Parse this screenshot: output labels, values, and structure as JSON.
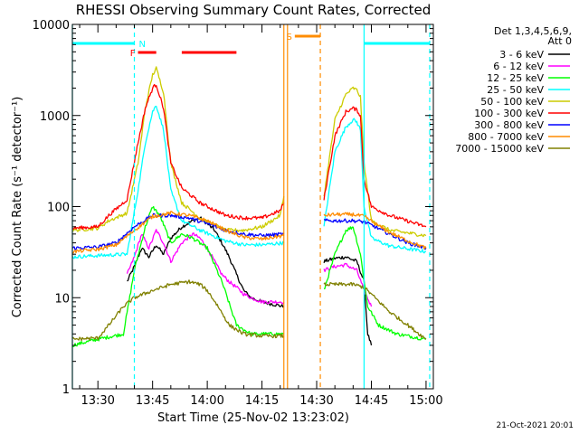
{
  "chart_data": {
    "type": "line",
    "title": "RHESSI Observing Summary Count Rates, Corrected",
    "xlabel": "Start Time (25-Nov-02 13:23:02)",
    "ylabel": "Corrected Count Rate (s⁻¹ detector⁻¹)",
    "y_scale": "log",
    "ylim": [
      1,
      10000
    ],
    "xlim": [
      "13:23",
      "15:02"
    ],
    "x_ticks": [
      "13:30",
      "13:45",
      "14:00",
      "14:15",
      "14:30",
      "14:45",
      "15:00"
    ],
    "y_ticks": [
      "1",
      "10",
      "100",
      "1000",
      "10000"
    ],
    "legend_header": [
      "Det 1,3,4,5,6,9,",
      "Att 0"
    ],
    "legend_position": "top-right",
    "footer_date": "21-Oct-2021 20:01",
    "annotations": [
      {
        "label": "N",
        "type": "night",
        "color": "#00ffff",
        "spans": [
          [
            "13:23",
            "13:40"
          ],
          [
            "14:43",
            "15:01"
          ]
        ]
      },
      {
        "label": "F",
        "type": "flare",
        "color": "#ff0000",
        "spans": [
          [
            "13:41",
            "13:46"
          ],
          [
            "13:53",
            "14:08"
          ]
        ]
      },
      {
        "label": "S",
        "type": "saa",
        "color": "#ff8c00",
        "spans": [
          [
            "14:24",
            "14:31"
          ]
        ]
      }
    ],
    "vlines": [
      {
        "x": "13:23",
        "color": "#00ffff",
        "style": "solid"
      },
      {
        "x": "13:40",
        "color": "#00ffff",
        "style": "dashed"
      },
      {
        "x": "14:21",
        "color": "#ff8c00",
        "style": "solid"
      },
      {
        "x": "14:22",
        "color": "#ff8c00",
        "style": "solid"
      },
      {
        "x": "14:31",
        "color": "#ff8c00",
        "style": "dashed"
      },
      {
        "x": "14:43",
        "color": "#00ffff",
        "style": "solid"
      },
      {
        "x": "15:01",
        "color": "#00ffff",
        "style": "dashed"
      }
    ],
    "series": [
      {
        "name": "3 - 6 keV",
        "color": "#000000",
        "segments": [
          [
            [
              "13:38",
              15
            ],
            [
              "13:40",
              22
            ],
            [
              "13:42",
              35
            ],
            [
              "13:44",
              28
            ],
            [
              "13:46",
              38
            ],
            [
              "13:48",
              30
            ],
            [
              "13:50",
              45
            ],
            [
              "13:53",
              60
            ],
            [
              "13:56",
              70
            ],
            [
              "13:58",
              75
            ],
            [
              "14:00",
              65
            ],
            [
              "14:02",
              55
            ],
            [
              "14:04",
              40
            ],
            [
              "14:06",
              28
            ],
            [
              "14:08",
              18
            ],
            [
              "14:10",
              12
            ],
            [
              "14:12",
              10
            ],
            [
              "14:15",
              9
            ],
            [
              "14:21",
              8
            ]
          ],
          [
            [
              "14:32",
              25
            ],
            [
              "14:35",
              27
            ],
            [
              "14:38",
              28
            ],
            [
              "14:41",
              25
            ],
            [
              "14:43",
              15
            ],
            [
              "14:44",
              4
            ],
            [
              "14:45",
              3
            ]
          ]
        ]
      },
      {
        "name": "6 - 12 keV",
        "color": "#ff00ff",
        "segments": [
          [
            [
              "13:38",
              18
            ],
            [
              "13:40",
              28
            ],
            [
              "13:42",
              50
            ],
            [
              "13:44",
              35
            ],
            [
              "13:46",
              55
            ],
            [
              "13:48",
              40
            ],
            [
              "13:50",
              25
            ],
            [
              "13:53",
              40
            ],
            [
              "13:56",
              50
            ],
            [
              "13:58",
              45
            ],
            [
              "14:00",
              35
            ],
            [
              "14:02",
              25
            ],
            [
              "14:04",
              18
            ],
            [
              "14:06",
              15
            ],
            [
              "14:08",
              13
            ],
            [
              "14:10",
              11
            ],
            [
              "14:12",
              10
            ],
            [
              "14:15",
              9
            ],
            [
              "14:21",
              9
            ]
          ],
          [
            [
              "14:32",
              20
            ],
            [
              "14:35",
              22
            ],
            [
              "14:38",
              23
            ],
            [
              "14:41",
              20
            ],
            [
              "14:43",
              12
            ],
            [
              "14:45",
              8
            ]
          ]
        ]
      },
      {
        "name": "12 - 25 keV",
        "color": "#00ff00",
        "segments": [
          [
            [
              "13:23",
              3
            ],
            [
              "13:30",
              3.5
            ],
            [
              "13:37",
              4
            ],
            [
              "13:40",
              20
            ],
            [
              "13:43",
              60
            ],
            [
              "13:45",
              100
            ],
            [
              "13:47",
              80
            ],
            [
              "13:50",
              40
            ],
            [
              "13:53",
              50
            ],
            [
              "13:56",
              45
            ],
            [
              "14:00",
              35
            ],
            [
              "14:04",
              15
            ],
            [
              "14:08",
              5
            ],
            [
              "14:12",
              4
            ],
            [
              "14:15",
              4
            ],
            [
              "14:21",
              4
            ]
          ],
          [
            [
              "14:32",
              12
            ],
            [
              "14:35",
              30
            ],
            [
              "14:38",
              55
            ],
            [
              "14:40",
              60
            ],
            [
              "14:42",
              30
            ],
            [
              "14:44",
              8
            ],
            [
              "14:47",
              5
            ],
            [
              "14:52",
              4
            ],
            [
              "15:00",
              3.5
            ]
          ]
        ]
      },
      {
        "name": "25 - 50 keV",
        "color": "#00ffff",
        "segments": [
          [
            [
              "13:23",
              28
            ],
            [
              "13:30",
              29
            ],
            [
              "13:38",
              30
            ],
            [
              "13:41",
              150
            ],
            [
              "13:43",
              500
            ],
            [
              "13:45",
              1100
            ],
            [
              "13:46",
              1300
            ],
            [
              "13:48",
              700
            ],
            [
              "13:50",
              150
            ],
            [
              "13:53",
              70
            ],
            [
              "13:58",
              55
            ],
            [
              "14:05",
              42
            ],
            [
              "14:10",
              38
            ],
            [
              "14:15",
              38
            ],
            [
              "14:21",
              40
            ]
          ],
          [
            [
              "14:32",
              60
            ],
            [
              "14:35",
              400
            ],
            [
              "14:38",
              750
            ],
            [
              "14:40",
              900
            ],
            [
              "14:41",
              850
            ],
            [
              "14:42",
              700
            ],
            [
              "14:43",
              100
            ],
            [
              "14:45",
              45
            ],
            [
              "14:50",
              37
            ],
            [
              "15:00",
              32
            ]
          ]
        ]
      },
      {
        "name": "50 - 100 keV",
        "color": "#cccc00",
        "segments": [
          [
            [
              "13:23",
              55
            ],
            [
              "13:30",
              58
            ],
            [
              "13:33",
              70
            ],
            [
              "13:38",
              85
            ],
            [
              "13:41",
              300
            ],
            [
              "13:43",
              1200
            ],
            [
              "13:45",
              2800
            ],
            [
              "13:46",
              3300
            ],
            [
              "13:48",
              1800
            ],
            [
              "13:50",
              300
            ],
            [
              "13:53",
              110
            ],
            [
              "13:58",
              75
            ],
            [
              "14:05",
              55
            ],
            [
              "14:10",
              55
            ],
            [
              "14:15",
              60
            ],
            [
              "14:20",
              80
            ],
            [
              "14:21",
              130
            ]
          ],
          [
            [
              "14:32",
              130
            ],
            [
              "14:35",
              900
            ],
            [
              "14:38",
              1700
            ],
            [
              "14:40",
              2000
            ],
            [
              "14:41",
              1900
            ],
            [
              "14:42",
              1600
            ],
            [
              "14:43",
              300
            ],
            [
              "14:45",
              70
            ],
            [
              "14:50",
              55
            ],
            [
              "15:00",
              48
            ]
          ]
        ]
      },
      {
        "name": "100 - 300 keV",
        "color": "#ff0000",
        "segments": [
          [
            [
              "13:23",
              58
            ],
            [
              "13:30",
              60
            ],
            [
              "13:33",
              80
            ],
            [
              "13:38",
              120
            ],
            [
              "13:41",
              500
            ],
            [
              "13:43",
              1200
            ],
            [
              "13:45",
              2000
            ],
            [
              "13:46",
              2200
            ],
            [
              "13:48",
              1200
            ],
            [
              "13:50",
              300
            ],
            [
              "13:53",
              160
            ],
            [
              "13:58",
              110
            ],
            [
              "14:05",
              80
            ],
            [
              "14:10",
              75
            ],
            [
              "14:15",
              75
            ],
            [
              "14:20",
              90
            ],
            [
              "14:21",
              110
            ]
          ],
          [
            [
              "14:32",
              120
            ],
            [
              "14:35",
              600
            ],
            [
              "14:38",
              1100
            ],
            [
              "14:40",
              1200
            ],
            [
              "14:41",
              1150
            ],
            [
              "14:42",
              1000
            ],
            [
              "14:43",
              200
            ],
            [
              "14:45",
              100
            ],
            [
              "14:50",
              80
            ],
            [
              "15:00",
              60
            ]
          ]
        ]
      },
      {
        "name": "300 - 800 keV",
        "color": "#0000ff",
        "segments": [
          [
            [
              "13:23",
              35
            ],
            [
              "13:30",
              36
            ],
            [
              "13:35",
              40
            ],
            [
              "13:40",
              60
            ],
            [
              "13:45",
              80
            ],
            [
              "13:50",
              80
            ],
            [
              "13:55",
              75
            ],
            [
              "14:00",
              65
            ],
            [
              "14:05",
              55
            ],
            [
              "14:10",
              50
            ],
            [
              "14:15",
              48
            ],
            [
              "14:21",
              50
            ]
          ],
          [
            [
              "14:32",
              70
            ],
            [
              "14:35",
              70
            ],
            [
              "14:40",
              70
            ],
            [
              "14:43",
              68
            ],
            [
              "14:46",
              60
            ],
            [
              "14:50",
              50
            ],
            [
              "14:55",
              40
            ],
            [
              "15:00",
              35
            ]
          ]
        ]
      },
      {
        "name": "800 - 7000 keV",
        "color": "#ff8c00",
        "segments": [
          [
            [
              "13:23",
              32
            ],
            [
              "13:30",
              34
            ],
            [
              "13:35",
              38
            ],
            [
              "13:40",
              55
            ],
            [
              "13:45",
              78
            ],
            [
              "13:50",
              85
            ],
            [
              "13:55",
              80
            ],
            [
              "14:00",
              70
            ],
            [
              "14:05",
              55
            ],
            [
              "14:10",
              46
            ],
            [
              "14:15",
              44
            ],
            [
              "14:21",
              48
            ]
          ],
          [
            [
              "14:32",
              80
            ],
            [
              "14:35",
              82
            ],
            [
              "14:40",
              82
            ],
            [
              "14:43",
              78
            ],
            [
              "14:46",
              65
            ],
            [
              "14:50",
              52
            ],
            [
              "14:55",
              42
            ],
            [
              "15:00",
              35
            ]
          ]
        ]
      },
      {
        "name": "7000 - 15000 keV",
        "color": "#808000",
        "segments": [
          [
            [
              "13:23",
              3.5
            ],
            [
              "13:30",
              3.6
            ],
            [
              "13:33",
              5
            ],
            [
              "13:37",
              8
            ],
            [
              "13:40",
              10
            ],
            [
              "13:45",
              12
            ],
            [
              "13:50",
              14
            ],
            [
              "13:55",
              15
            ],
            [
              "13:58",
              14
            ],
            [
              "14:00",
              12
            ],
            [
              "14:03",
              8
            ],
            [
              "14:06",
              5
            ],
            [
              "14:10",
              4
            ],
            [
              "14:15",
              3.8
            ],
            [
              "14:21",
              3.8
            ]
          ],
          [
            [
              "14:32",
              14
            ],
            [
              "14:35",
              14
            ],
            [
              "14:40",
              14
            ],
            [
              "14:43",
              13
            ],
            [
              "14:46",
              10
            ],
            [
              "14:50",
              7
            ],
            [
              "14:55",
              5
            ],
            [
              "15:00",
              3.5
            ]
          ]
        ]
      }
    ]
  }
}
